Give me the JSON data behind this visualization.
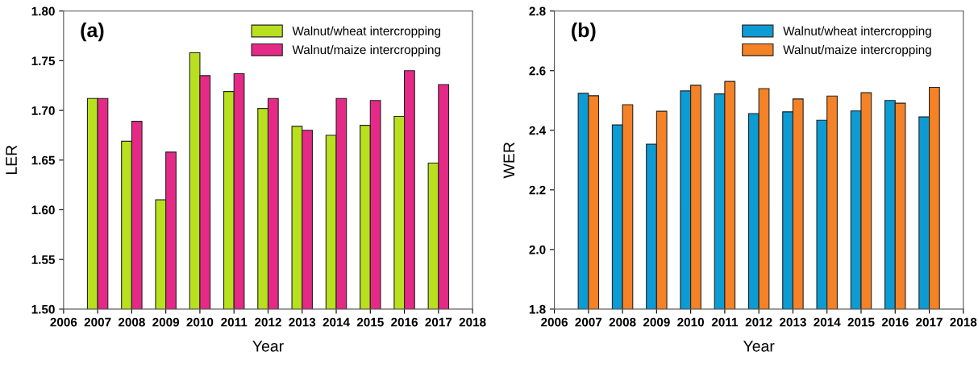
{
  "chart_data": [
    {
      "type": "bar",
      "xlabel": "Year",
      "ylabel": "LER",
      "annotations": [
        "(a)"
      ],
      "x": [
        2007,
        2008,
        2009,
        2010,
        2011,
        2012,
        2013,
        2014,
        2015,
        2016,
        2017
      ],
      "series": [
        {
          "name": "Walnut/wheat intercropping",
          "color": "#b8e01e",
          "values": [
            1.712,
            1.669,
            1.61,
            1.758,
            1.719,
            1.702,
            1.684,
            1.675,
            1.685,
            1.694,
            1.647
          ]
        },
        {
          "name": "Walnut/maize intercropping",
          "color": "#e42a86",
          "values": [
            1.712,
            1.689,
            1.658,
            1.735,
            1.737,
            1.712,
            1.68,
            1.712,
            1.71,
            1.74,
            1.726
          ]
        }
      ],
      "xlim": [
        2006,
        2018
      ],
      "xticks": [
        2006,
        2007,
        2008,
        2009,
        2010,
        2011,
        2012,
        2013,
        2014,
        2015,
        2016,
        2017,
        2018
      ],
      "ylim": [
        1.5,
        1.8
      ],
      "yticks": [
        {
          "value": 1.5,
          "label": "1.50"
        },
        {
          "value": 1.55,
          "label": "1.55"
        },
        {
          "value": 1.6,
          "label": "1.60"
        },
        {
          "value": 1.65,
          "label": "1.65"
        },
        {
          "value": 1.7,
          "label": "1.70"
        },
        {
          "value": 1.75,
          "label": "1.75"
        },
        {
          "value": 1.8,
          "label": "1.80"
        }
      ],
      "grid": false,
      "legend": "top right"
    },
    {
      "type": "bar",
      "xlabel": "Year",
      "ylabel": "WER",
      "annotations": [
        "(b)"
      ],
      "x": [
        2007,
        2008,
        2009,
        2010,
        2011,
        2012,
        2013,
        2014,
        2015,
        2016,
        2017
      ],
      "series": [
        {
          "name": "Walnut/wheat intercropping",
          "color": "#0d9bd3",
          "values": [
            2.524,
            2.418,
            2.353,
            2.532,
            2.522,
            2.456,
            2.462,
            2.434,
            2.465,
            2.5,
            2.445
          ]
        },
        {
          "name": "Walnut/maize intercropping",
          "color": "#f58226",
          "values": [
            2.516,
            2.486,
            2.464,
            2.551,
            2.564,
            2.54,
            2.505,
            2.515,
            2.526,
            2.491,
            2.544
          ]
        }
      ],
      "xlim": [
        2006,
        2018
      ],
      "xticks": [
        2006,
        2007,
        2008,
        2009,
        2010,
        2011,
        2012,
        2013,
        2014,
        2015,
        2016,
        2017,
        2018
      ],
      "ylim": [
        1.8,
        2.8
      ],
      "yticks": [
        {
          "value": 1.8,
          "label": "1.8"
        },
        {
          "value": 2.0,
          "label": "2.0"
        },
        {
          "value": 2.2,
          "label": "2.2"
        },
        {
          "value": 2.4,
          "label": "2.4"
        },
        {
          "value": 2.6,
          "label": "2.6"
        },
        {
          "value": 2.8,
          "label": "2.8"
        }
      ],
      "grid": false,
      "legend": "top right"
    }
  ]
}
